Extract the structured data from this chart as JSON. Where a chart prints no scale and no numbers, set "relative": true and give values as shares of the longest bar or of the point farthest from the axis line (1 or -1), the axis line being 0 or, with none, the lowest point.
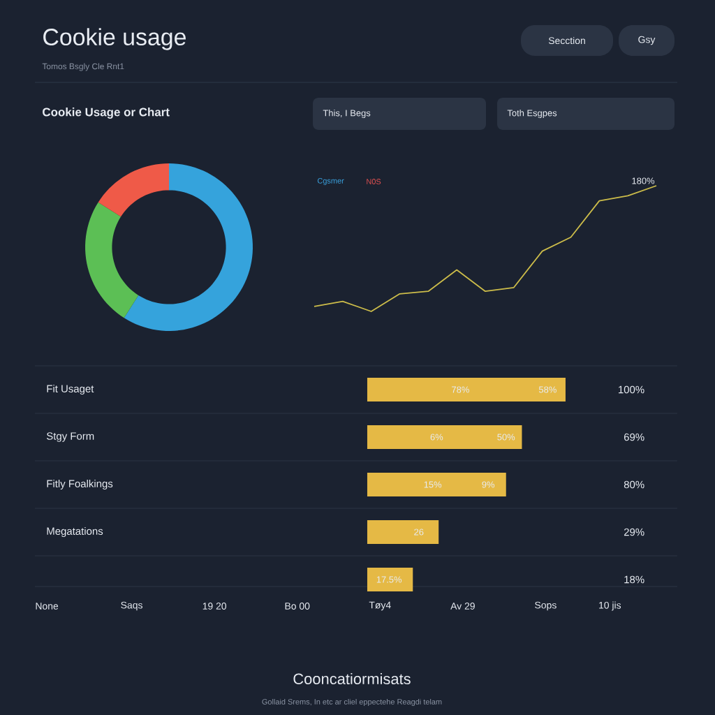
{
  "chart_data": [
    {
      "type": "donut",
      "title": "Cookie Usage or Chart",
      "categories": [
        null,
        null,
        null
      ],
      "values": [
        59,
        25,
        16
      ],
      "colors": [
        "#35a3dc",
        "#5cbf55",
        "#ef5a48"
      ],
      "annotations": [
        "Cookie usage",
        "Tomos Bsgly Cle Rnt1",
        "Secction",
        "Gsy"
      ]
    },
    {
      "type": "line",
      "relative": true,
      "categories": [
        null,
        null,
        null,
        null,
        null,
        null,
        null,
        null,
        null,
        null,
        null,
        null,
        null
      ],
      "values": [
        0.04,
        0.08,
        0,
        0.14,
        0.16,
        0.33,
        0.16,
        0.19,
        0.48,
        0.59,
        0.88,
        0.92,
        1
      ],
      "color": "#cdbd4a",
      "annotations": [
        "This, I Begs",
        "Toth Esgpes",
        "Cgsmer",
        "N0S",
        "180%"
      ]
    },
    {
      "type": "bar",
      "orientation": "horizontal",
      "relative": true,
      "categories": [
        "Fit Usaget",
        "Stgy Form",
        "Fitly Foalkings",
        "Megatations",
        null
      ],
      "values": [
        1,
        0.78,
        0.7,
        0.36,
        0.23
      ],
      "color": "#e5b945",
      "annotations": [
        "100%",
        "69%",
        "80%",
        "29%",
        "18%",
        "78%",
        "58%",
        "6%",
        "50%",
        "15%",
        "9%",
        "26",
        "17.5%",
        "None",
        "Saqs",
        "19 20",
        "Bo 00",
        "Tøy4",
        "Av 29",
        "Sops",
        "10 jis",
        "Cooncatiormisats",
        "Gollaid Srems, In etc ar cliel eppectehe Reagdi telam"
      ]
    }
  ]
}
